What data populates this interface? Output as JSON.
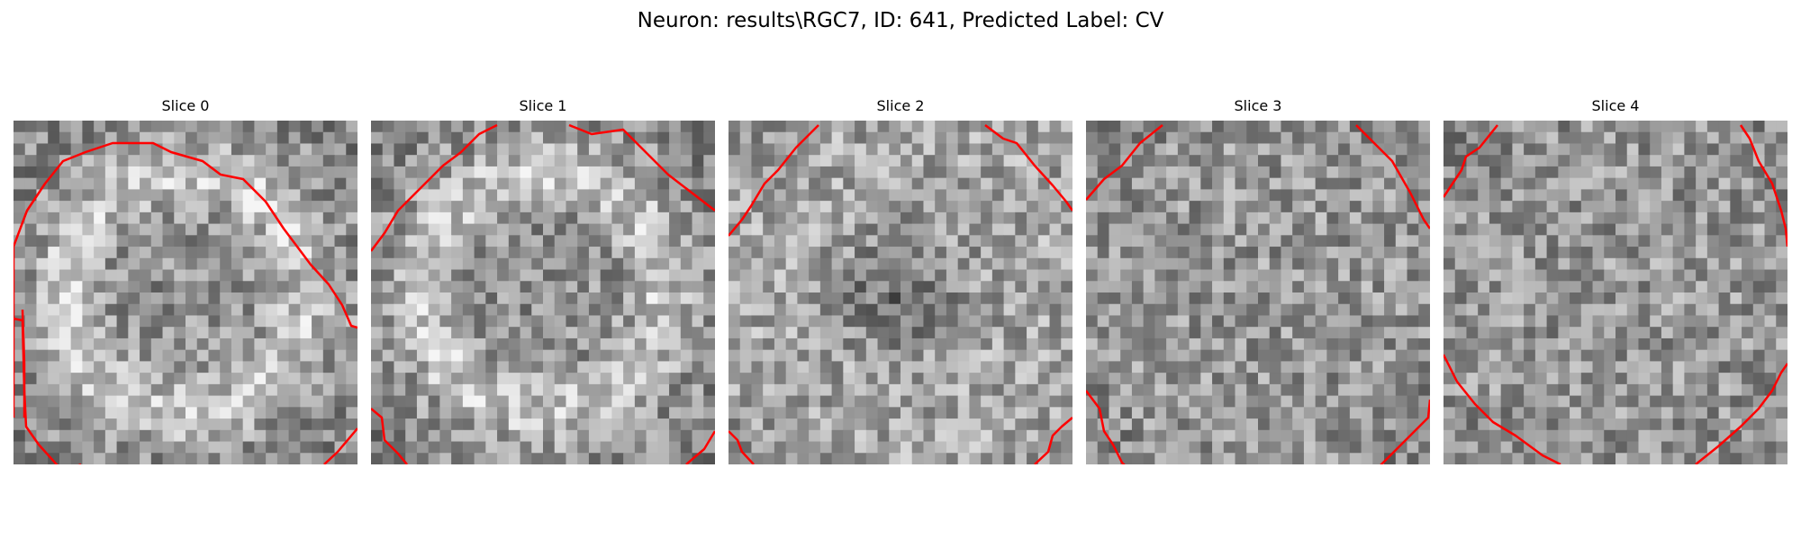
{
  "title": "Neuron: results\\RGC7, ID: 641, Predicted Label: CV",
  "contour_color": "#ff0000",
  "colormap": "grayscale",
  "panels": [
    {
      "label": "Slice 0",
      "seed": 11,
      "pattern": "ring"
    },
    {
      "label": "Slice 1",
      "seed": 23,
      "pattern": "ring"
    },
    {
      "label": "Slice 2",
      "seed": 37,
      "pattern": "center-dark"
    },
    {
      "label": "Slice 3",
      "seed": 53,
      "pattern": "flat"
    },
    {
      "label": "Slice 4",
      "seed": 71,
      "pattern": "flat"
    }
  ]
}
